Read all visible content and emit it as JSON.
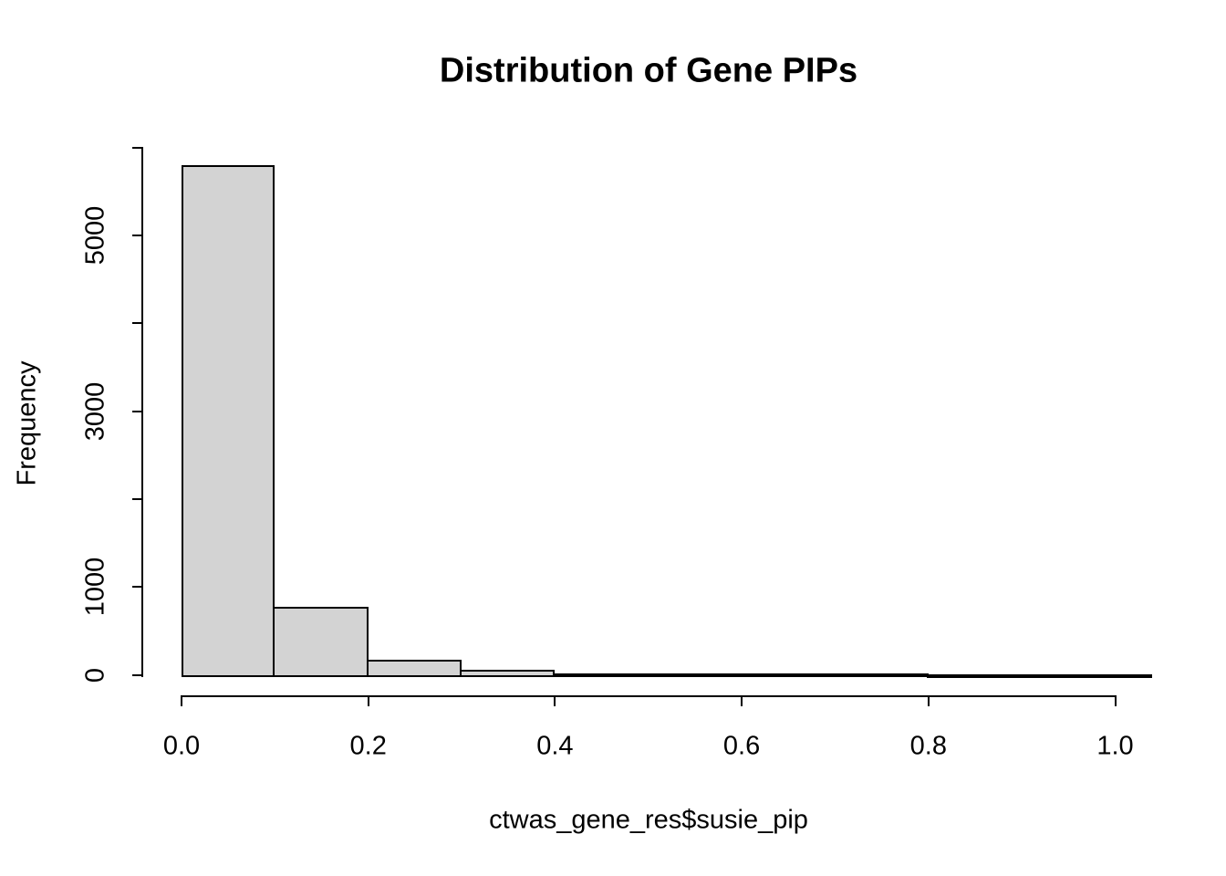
{
  "chart_data": {
    "type": "bar",
    "subtype": "histogram",
    "title": "Distribution of Gene PIPs",
    "xlabel": "ctwas_gene_res$susie_pip",
    "ylabel": "Frequency",
    "xlim": [
      0.0,
      1.04
    ],
    "ylim": [
      0,
      6000
    ],
    "grid": false,
    "legend": null,
    "bar_fill": "#d3d3d3",
    "bar_border": "#000000",
    "bin_width": 0.1,
    "x_ticks": [
      {
        "value": 0.0,
        "label": "0.0"
      },
      {
        "value": 0.2,
        "label": "0.2"
      },
      {
        "value": 0.4,
        "label": "0.4"
      },
      {
        "value": 0.6,
        "label": "0.6"
      },
      {
        "value": 0.8,
        "label": "0.8"
      },
      {
        "value": 1.0,
        "label": "1.0"
      }
    ],
    "y_ticks": [
      {
        "value": 0,
        "label": "0"
      },
      {
        "value": 1000,
        "label": "1000"
      },
      {
        "value": 2000,
        "label": ""
      },
      {
        "value": 3000,
        "label": "3000"
      },
      {
        "value": 4000,
        "label": ""
      },
      {
        "value": 5000,
        "label": "5000"
      },
      {
        "value": 6000,
        "label": ""
      }
    ],
    "bins": [
      {
        "x0": 0.0,
        "x1": 0.1,
        "count": 5800
      },
      {
        "x0": 0.1,
        "x1": 0.2,
        "count": 770
      },
      {
        "x0": 0.2,
        "x1": 0.3,
        "count": 170
      },
      {
        "x0": 0.3,
        "x1": 0.4,
        "count": 62
      },
      {
        "x0": 0.4,
        "x1": 0.5,
        "count": 21
      },
      {
        "x0": 0.5,
        "x1": 0.6,
        "count": 14
      },
      {
        "x0": 0.6,
        "x1": 0.7,
        "count": 12
      },
      {
        "x0": 0.7,
        "x1": 0.8,
        "count": 12
      },
      {
        "x0": 0.8,
        "x1": 0.9,
        "count": 8
      },
      {
        "x0": 0.9,
        "x1": 1.0,
        "count": 8
      },
      {
        "x0": 1.0,
        "x1": 1.04,
        "count": 8
      }
    ]
  }
}
